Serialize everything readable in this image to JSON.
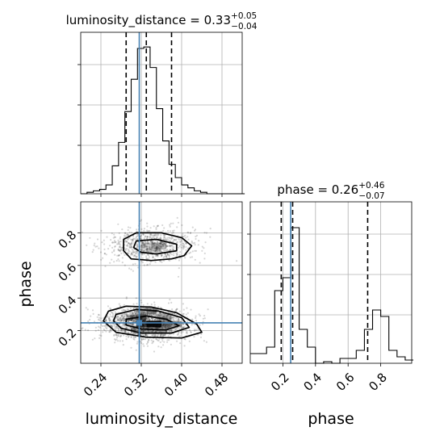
{
  "chart_data": [
    {
      "type": "histogram",
      "title": {
        "text": "luminosity_distance = 0.33",
        "sup": "+0.05",
        "sub": "−0.04"
      },
      "x": {
        "ticks": [
          "0.24",
          "0.32",
          "0.40",
          "0.48"
        ],
        "tick_values": [
          0.24,
          0.32,
          0.4,
          0.48
        ],
        "xlim": [
          0.2,
          0.52
        ]
      },
      "bins": {
        "start": 0.2,
        "width": 0.0125
      },
      "counts": [
        0,
        1,
        2,
        3,
        6,
        19,
        35,
        56,
        78,
        99,
        100,
        86,
        58,
        36,
        20,
        11,
        6,
        4,
        2,
        1,
        0,
        0,
        0,
        0,
        0,
        0
      ],
      "ylim": [
        0,
        110
      ],
      "quantiles": [
        0.29,
        0.33,
        0.38
      ],
      "truth": 0.316,
      "grid": true
    },
    {
      "type": "histogram",
      "title": {
        "text": "phase = 0.26",
        "sup": "+0.46",
        "sub": "−0.07"
      },
      "x": {
        "ticks": [
          "0.2",
          "0.4",
          "0.6",
          "0.8"
        ],
        "tick_values": [
          0.2,
          0.4,
          0.6,
          0.8
        ],
        "xlim": [
          0.0,
          0.99
        ]
      },
      "bins": {
        "start": 0.0,
        "width": 0.05
      },
      "counts": [
        6,
        6,
        10,
        45,
        53,
        84,
        21,
        10,
        0,
        1,
        0,
        3,
        3,
        8,
        21,
        33,
        29,
        8,
        4,
        2
      ],
      "ylim": [
        0,
        100
      ],
      "quantiles": [
        0.19,
        0.26,
        0.72
      ],
      "truth": 0.248,
      "grid": true
    },
    {
      "type": "scatter",
      "style": "2d-histogram-with-contours",
      "xlabel": "luminosity_distance",
      "ylabel": "phase",
      "x": {
        "ticks": [
          "0.24",
          "0.32",
          "0.40",
          "0.48"
        ],
        "tick_values": [
          0.24,
          0.32,
          0.4,
          0.48
        ],
        "xlim": [
          0.2,
          0.52
        ]
      },
      "y": {
        "ticks": [
          "0.2",
          "0.4",
          "0.6",
          "0.8"
        ],
        "tick_values": [
          0.2,
          0.4,
          0.6,
          0.8
        ],
        "ylim": [
          0.0,
          0.99
        ]
      },
      "clusters": [
        {
          "center_x": 0.33,
          "center_y": 0.25,
          "weight": 0.67
        },
        {
          "center_x": 0.34,
          "center_y": 0.72,
          "weight": 0.33
        }
      ],
      "truth": {
        "x": 0.316,
        "y": 0.248
      },
      "grid": true
    }
  ],
  "colors": {
    "truth": "#4682b4",
    "hist": "#000000",
    "grid": "#b0b0b0",
    "density": "#000000"
  }
}
